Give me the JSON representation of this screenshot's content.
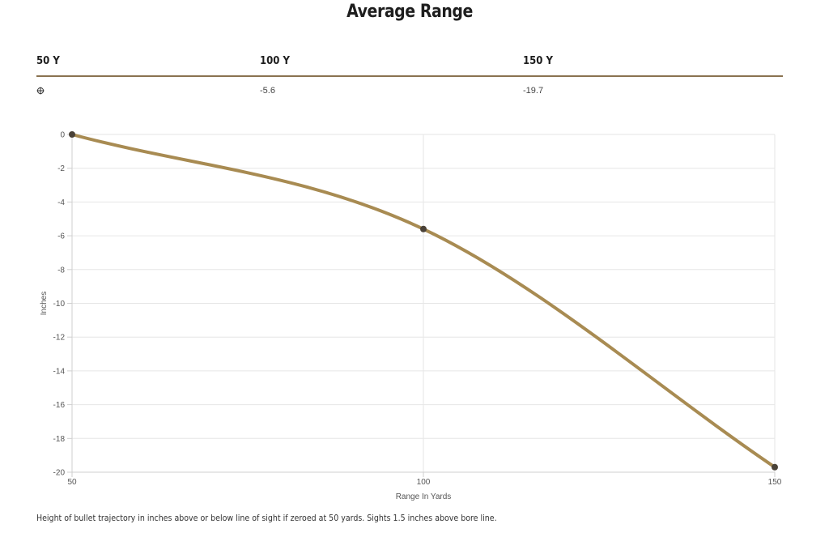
{
  "header": {
    "title": "Average Range"
  },
  "range_table": {
    "columns": [
      {
        "label": "50 Y",
        "value": ""
      },
      {
        "label": "100 Y",
        "value": "-5.6"
      },
      {
        "label": "150 Y",
        "value": "-19.7"
      }
    ],
    "zero_icon": "crosshair-icon"
  },
  "caption": "Height of bullet trajectory in inches above or below line of sight if zeroed at 50 yards. Sights 1.5 inches above bore line.",
  "chart_data": {
    "type": "line",
    "title": "",
    "xlabel": "Range In Yards",
    "ylabel": "Inches",
    "xlim": [
      50,
      150
    ],
    "ylim": [
      -20,
      0
    ],
    "x_ticks": [
      50,
      100,
      150
    ],
    "y_ticks": [
      0,
      -2,
      -4,
      -6,
      -8,
      -10,
      -12,
      -14,
      -16,
      -18,
      -20
    ],
    "grid": true,
    "series": [
      {
        "x": [
          50,
          100,
          150
        ],
        "y": [
          0,
          -5.6,
          -19.7
        ],
        "color": "#a88b52",
        "marker_color": "#4a4238"
      }
    ]
  }
}
